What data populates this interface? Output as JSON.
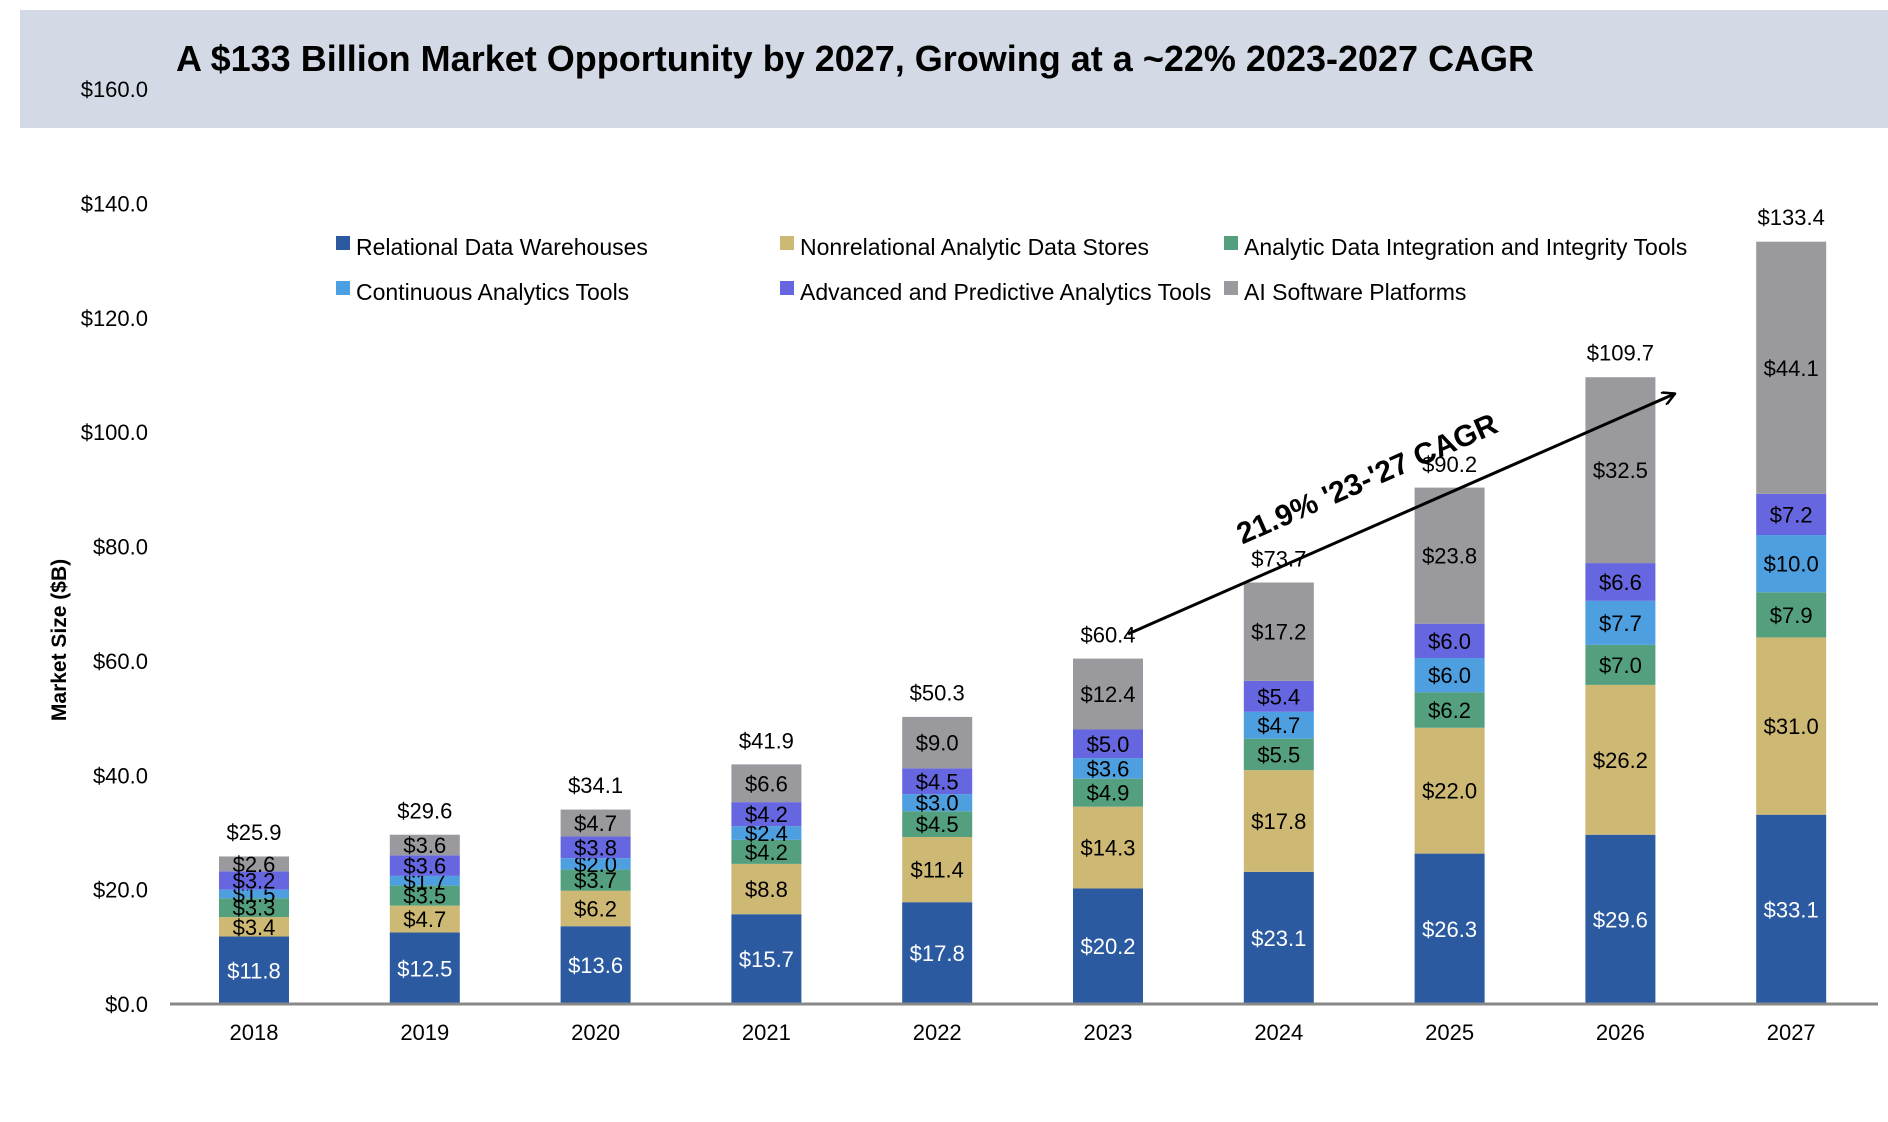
{
  "title": "A $133 Billion Market Opportunity by 2027, Growing at a ~22% 2023-2027 CAGR",
  "chart_data": {
    "type": "bar",
    "stacked": true,
    "title": "A $133 Billion Market Opportunity by 2027, Growing at a ~22% 2023-2027 CAGR",
    "xlabel": "",
    "ylabel": "Market Size ($B)",
    "ylim": [
      0,
      160
    ],
    "yticks": [
      "$0.0",
      "$20.0",
      "$40.0",
      "$60.0",
      "$80.0",
      "$100.0",
      "$120.0",
      "$140.0",
      "$160.0"
    ],
    "categories": [
      "2018",
      "2019",
      "2020",
      "2021",
      "2022",
      "2023",
      "2024",
      "2025",
      "2026",
      "2027"
    ],
    "series": [
      {
        "name": "Relational Data Warehouses",
        "color": "#2b5aa0",
        "label_color": "#ffffff",
        "values": [
          11.8,
          12.5,
          13.6,
          15.7,
          17.8,
          20.2,
          23.1,
          26.3,
          29.6,
          33.1
        ],
        "labels": [
          "$11.8",
          "$12.5",
          "$13.6",
          "$15.7",
          "$17.8",
          "$20.2",
          "$23.1",
          "$26.3",
          "$29.6",
          "$33.1"
        ]
      },
      {
        "name": "Nonrelational Analytic Data Stores",
        "color": "#cdb874",
        "label_color": "#000000",
        "values": [
          3.4,
          4.7,
          6.2,
          8.8,
          11.4,
          14.3,
          17.8,
          22.0,
          26.2,
          31.0
        ],
        "labels": [
          "$3.4",
          "$4.7",
          "$6.2",
          "$8.8",
          "$11.4",
          "$14.3",
          "$17.8",
          "$22.0",
          "$26.2",
          "$31.0"
        ]
      },
      {
        "name": "Analytic Data Integration and Integrity Tools",
        "color": "#54a07e",
        "label_color": "#000000",
        "values": [
          3.3,
          3.5,
          3.7,
          4.2,
          4.5,
          4.9,
          5.5,
          6.2,
          7.0,
          7.9
        ],
        "labels": [
          "$3.3",
          "$3.5",
          "$3.7",
          "$4.2",
          "$4.5",
          "$4.9",
          "$5.5",
          "$6.2",
          "$7.0",
          "$7.9"
        ]
      },
      {
        "name": "Continuous Analytics Tools",
        "color": "#4d9fe0",
        "label_color": "#000000",
        "values": [
          1.5,
          1.7,
          2.0,
          2.4,
          3.0,
          3.6,
          4.7,
          6.0,
          7.7,
          10.0
        ],
        "labels": [
          "$1.5",
          "$1.7",
          "$2.0",
          "$2.4",
          "$3.0",
          "$3.6",
          "$4.7",
          "$6.0",
          "$7.7",
          "$10.0"
        ]
      },
      {
        "name": "Advanced and Predictive Analytics Tools",
        "color": "#6666e0",
        "label_color": "#000000",
        "values": [
          3.2,
          3.6,
          3.8,
          4.2,
          4.5,
          5.0,
          5.4,
          6.0,
          6.6,
          7.2
        ],
        "labels": [
          "$3.2",
          "$3.6",
          "$3.8",
          "$4.2",
          "$4.5",
          "$5.0",
          "$5.4",
          "$6.0",
          "$6.6",
          "$7.2"
        ]
      },
      {
        "name": "AI Software Platforms",
        "color": "#9a9a9e",
        "label_color": "#000000",
        "values": [
          2.6,
          3.6,
          4.7,
          6.6,
          9.0,
          12.4,
          17.2,
          23.8,
          32.5,
          44.1
        ],
        "labels": [
          "$2.6",
          "$3.6",
          "$4.7",
          "$6.6",
          "$9.0",
          "$12.4",
          "$17.2",
          "$23.8",
          "$32.5",
          "$44.1"
        ]
      }
    ],
    "totals": [
      25.9,
      29.6,
      34.1,
      41.9,
      50.3,
      60.4,
      73.7,
      90.2,
      109.7,
      133.4
    ],
    "total_labels": [
      "$25.9",
      "$29.6",
      "$34.1",
      "$41.9",
      "$50.3",
      "$60.4",
      "$73.7",
      "$90.2",
      "$109.7",
      "$133.4"
    ],
    "annotation": {
      "text": "21.9% '23-'27 CAGR",
      "from_year": "2023",
      "to_year": "2027"
    },
    "legend_position": "top",
    "grid": false
  }
}
